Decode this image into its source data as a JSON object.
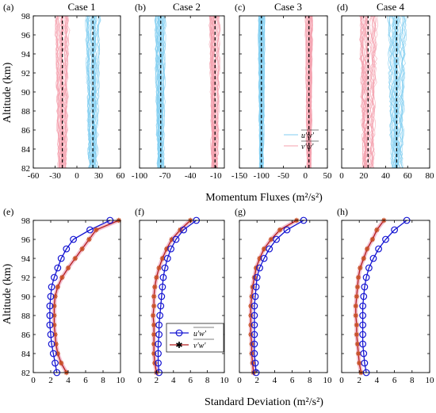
{
  "figure": {
    "top_xlabel": "Momentum Fluxes (m²/s²)",
    "bottom_xlabel": "Standard Deviation (m²/s²)",
    "ylabel": "Altitude (km)"
  },
  "colors": {
    "uw_band": "#80cdf0",
    "vw_band": "#f4a0ae",
    "uw_marker": "#1414d2",
    "vw_line": "#b41c1c",
    "vw_marker": "#c85028",
    "vw_marker_fill": "#f2c0d0",
    "mean_line": "#000000"
  },
  "chart_data": [
    {
      "id": "a",
      "type": "line",
      "panel_label": "(a)",
      "title": "Case 1",
      "xlim": [
        -60,
        60
      ],
      "ylim": [
        82,
        98
      ],
      "xticks": [
        "-60",
        "-30",
        "0",
        "30",
        "60"
      ],
      "xtick_values": [
        -60,
        -30,
        0,
        30,
        60
      ],
      "yticks": [
        "82",
        "84",
        "86",
        "88",
        "90",
        "92",
        "94",
        "96",
        "98"
      ],
      "series": [
        {
          "kind": "vw",
          "mean": -20,
          "spread": 12
        },
        {
          "kind": "uw",
          "mean": 22,
          "spread": 12
        }
      ]
    },
    {
      "id": "b",
      "type": "line",
      "panel_label": "(b)",
      "title": "Case 2",
      "xlim": [
        -100,
        0
      ],
      "ylim": [
        82,
        98
      ],
      "xticks": [
        "-100",
        "-70",
        "-40",
        "-10"
      ],
      "xtick_values": [
        -100,
        -70,
        -40,
        -10
      ],
      "yticks": [],
      "series": [
        {
          "kind": "uw",
          "mean": -75,
          "spread": 8
        },
        {
          "kind": "vw",
          "mean": -11,
          "spread": 8
        }
      ]
    },
    {
      "id": "c",
      "type": "line",
      "panel_label": "(c)",
      "title": "Case 3",
      "xlim": [
        -150,
        50
      ],
      "ylim": [
        82,
        98
      ],
      "xticks": [
        "-150",
        "-100",
        "-50",
        "0",
        "50"
      ],
      "xtick_values": [
        -150,
        -100,
        -50,
        0,
        50
      ],
      "yticks": [],
      "legend": [
        "u'w'",
        "v'w'"
      ],
      "series": [
        {
          "kind": "uw",
          "mean": -100,
          "spread": 10
        },
        {
          "kind": "vw",
          "mean": 8,
          "spread": 10
        }
      ]
    },
    {
      "id": "d",
      "type": "line",
      "panel_label": "(d)",
      "title": "Case 4",
      "xlim": [
        0,
        80
      ],
      "ylim": [
        82,
        98
      ],
      "xticks": [
        "0",
        "20",
        "40",
        "60",
        "80"
      ],
      "xtick_values": [
        0,
        20,
        40,
        60,
        80
      ],
      "yticks": [],
      "series": [
        {
          "kind": "vw",
          "mean": 24,
          "spread": 10
        },
        {
          "kind": "uw",
          "mean": 50,
          "spread": 10
        }
      ]
    },
    {
      "id": "e",
      "type": "line",
      "panel_label": "(e)",
      "xlim": [
        0,
        10
      ],
      "ylim": [
        82,
        98
      ],
      "xticks": [
        "0",
        "2",
        "4",
        "6",
        "8",
        "10"
      ],
      "xtick_values": [
        0,
        2,
        4,
        6,
        8,
        10
      ],
      "yticks": [
        "82",
        "84",
        "86",
        "88",
        "90",
        "92",
        "94",
        "96",
        "98"
      ],
      "y": [
        82,
        83,
        84,
        85,
        86,
        87,
        88,
        89,
        90,
        91,
        92,
        93,
        94,
        95,
        96,
        97,
        98
      ],
      "series": [
        {
          "kind": "uw",
          "values": [
            2.7,
            2.5,
            2.3,
            2.1,
            2.0,
            1.9,
            1.9,
            1.9,
            2.0,
            2.1,
            2.4,
            2.8,
            3.2,
            3.8,
            4.6,
            6.5,
            8.8
          ]
        },
        {
          "kind": "vw",
          "values": [
            3.8,
            3.2,
            2.8,
            2.6,
            2.5,
            2.4,
            2.4,
            2.4,
            2.5,
            2.8,
            3.3,
            4.0,
            4.8,
            5.6,
            6.4,
            7.2,
            9.8
          ]
        }
      ]
    },
    {
      "id": "f",
      "type": "line",
      "panel_label": "(f)",
      "xlim": [
        0,
        10
      ],
      "ylim": [
        82,
        98
      ],
      "xticks": [
        "0",
        "2",
        "4",
        "6",
        "8",
        "10"
      ],
      "xtick_values": [
        0,
        2,
        4,
        6,
        8,
        10
      ],
      "yticks": [],
      "legend": [
        "u'w'",
        "v'w'"
      ],
      "y": [
        82,
        83,
        84,
        85,
        86,
        87,
        88,
        89,
        90,
        91,
        92,
        93,
        94,
        95,
        96,
        97,
        98
      ],
      "series": [
        {
          "kind": "uw",
          "values": [
            2.3,
            2.2,
            2.2,
            2.2,
            2.3,
            2.3,
            2.4,
            2.5,
            2.6,
            2.7,
            2.8,
            3.0,
            3.3,
            3.7,
            4.3,
            5.2,
            6.7
          ]
        },
        {
          "kind": "vw",
          "values": [
            2.0,
            1.8,
            1.7,
            1.7,
            1.7,
            1.7,
            1.6,
            1.7,
            1.7,
            1.8,
            2.0,
            2.3,
            2.7,
            3.2,
            3.8,
            4.8,
            6.0
          ]
        }
      ]
    },
    {
      "id": "g",
      "type": "line",
      "panel_label": "(g)",
      "xlim": [
        0,
        10
      ],
      "ylim": [
        82,
        98
      ],
      "xticks": [
        "0",
        "2",
        "4",
        "6",
        "8",
        "10"
      ],
      "xtick_values": [
        0,
        2,
        4,
        6,
        8,
        10
      ],
      "yticks": [],
      "y": [
        82,
        83,
        84,
        85,
        86,
        87,
        88,
        89,
        90,
        91,
        92,
        93,
        94,
        95,
        96,
        97,
        98
      ],
      "series": [
        {
          "kind": "uw",
          "values": [
            1.9,
            1.8,
            1.7,
            1.7,
            1.7,
            1.7,
            1.7,
            1.7,
            1.8,
            1.9,
            2.0,
            2.3,
            2.8,
            3.4,
            4.2,
            5.4,
            7.3
          ]
        },
        {
          "kind": "vw",
          "values": [
            1.6,
            1.5,
            1.4,
            1.4,
            1.3,
            1.3,
            1.3,
            1.3,
            1.4,
            1.5,
            1.7,
            1.9,
            2.3,
            2.8,
            3.6,
            4.6,
            6.5
          ]
        }
      ]
    },
    {
      "id": "h",
      "type": "line",
      "panel_label": "(h)",
      "xlim": [
        0,
        10
      ],
      "ylim": [
        82,
        98
      ],
      "xticks": [
        "0",
        "2",
        "4",
        "6",
        "8",
        "10"
      ],
      "xtick_values": [
        0,
        2,
        4,
        6,
        8,
        10
      ],
      "yticks": [],
      "y": [
        82,
        83,
        84,
        85,
        86,
        87,
        88,
        89,
        90,
        91,
        92,
        93,
        94,
        95,
        96,
        97,
        98
      ],
      "series": [
        {
          "kind": "uw",
          "values": [
            2.8,
            2.6,
            2.5,
            2.4,
            2.4,
            2.4,
            2.4,
            2.4,
            2.5,
            2.6,
            2.8,
            3.1,
            3.6,
            4.2,
            5.0,
            6.0,
            7.4
          ]
        },
        {
          "kind": "vw",
          "values": [
            2.2,
            2.0,
            1.9,
            1.8,
            1.7,
            1.7,
            1.6,
            1.6,
            1.7,
            1.8,
            1.9,
            2.1,
            2.5,
            2.9,
            3.5,
            4.0,
            4.8
          ]
        }
      ]
    }
  ]
}
